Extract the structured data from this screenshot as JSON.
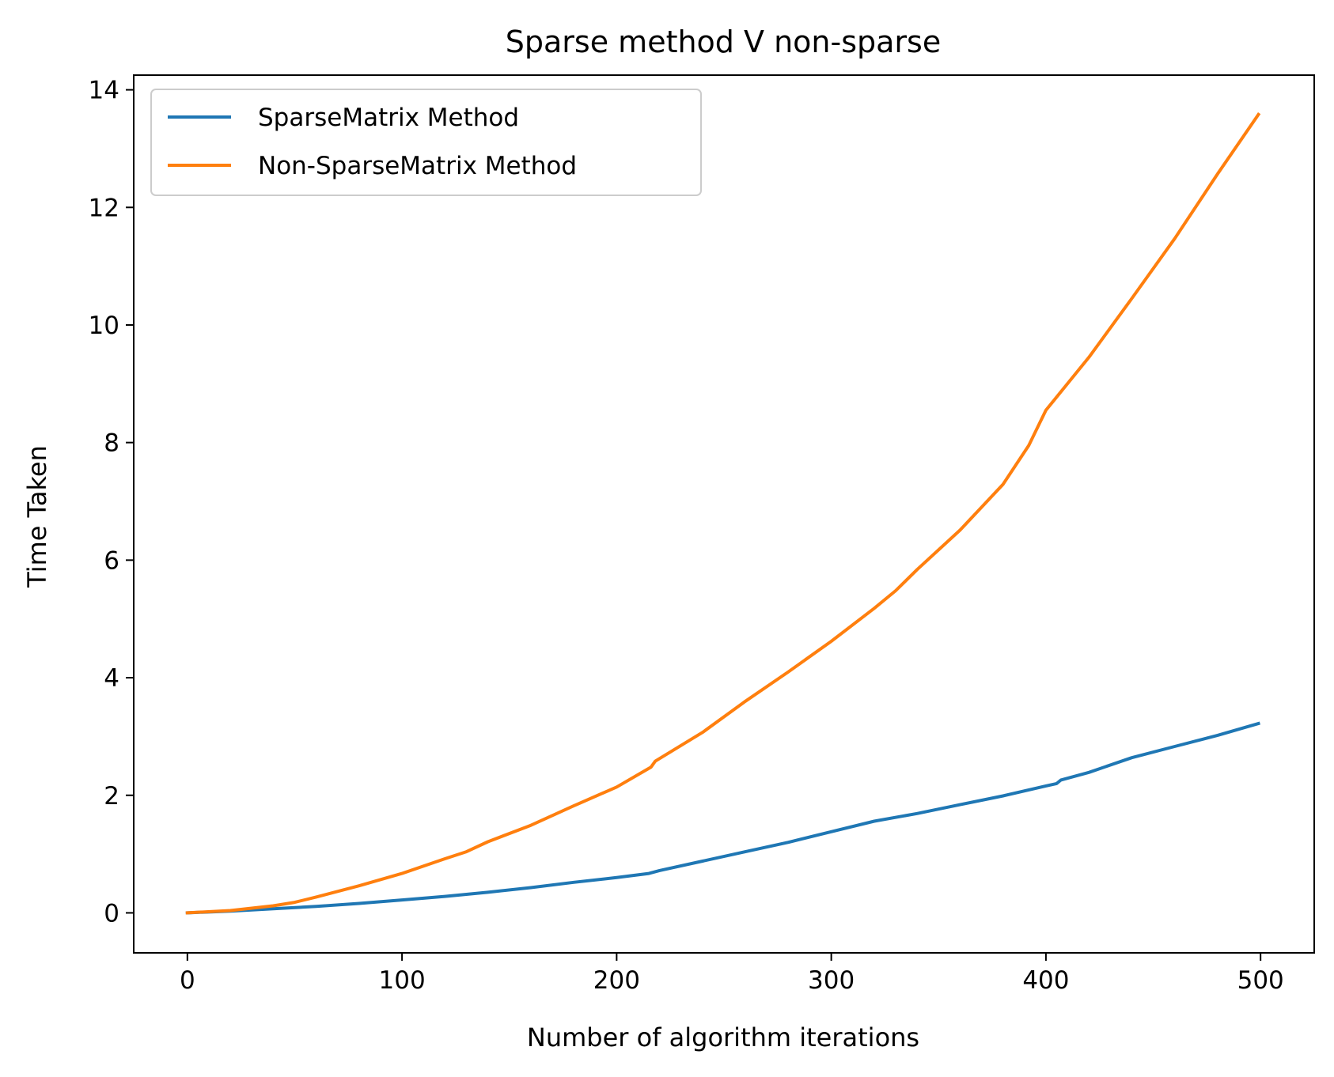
{
  "chart_data": {
    "type": "line",
    "title": "Sparse method V non-sparse",
    "xlabel": "Number of algorithm iterations",
    "ylabel": "Time Taken",
    "xlim": [
      -25,
      525
    ],
    "ylim": [
      -0.68,
      14.25
    ],
    "xticks": [
      0,
      100,
      200,
      300,
      400,
      500
    ],
    "yticks": [
      0,
      2,
      4,
      6,
      8,
      10,
      12,
      14
    ],
    "grid": false,
    "legend_position": "top-left",
    "series": [
      {
        "name": "SparseMatrix Method",
        "color": "#1f77b4",
        "x": [
          0,
          20,
          40,
          60,
          80,
          100,
          120,
          140,
          160,
          180,
          200,
          215,
          220,
          240,
          260,
          280,
          300,
          320,
          340,
          360,
          380,
          400,
          405,
          407,
          420,
          440,
          460,
          480,
          499
        ],
        "y": [
          0,
          0.03,
          0.07,
          0.11,
          0.16,
          0.22,
          0.28,
          0.35,
          0.43,
          0.52,
          0.6,
          0.67,
          0.72,
          0.88,
          1.04,
          1.2,
          1.38,
          1.56,
          1.69,
          1.84,
          1.99,
          2.16,
          2.2,
          2.26,
          2.39,
          2.64,
          2.83,
          3.02,
          3.22
        ]
      },
      {
        "name": "Non-SparseMatrix Method",
        "color": "#ff7f0e",
        "x": [
          0,
          20,
          40,
          50,
          60,
          80,
          100,
          120,
          130,
          140,
          160,
          180,
          200,
          216,
          218,
          240,
          260,
          280,
          300,
          320,
          330,
          340,
          360,
          380,
          392,
          400,
          420,
          440,
          460,
          480,
          499
        ],
        "y": [
          0,
          0.04,
          0.12,
          0.18,
          0.27,
          0.46,
          0.67,
          0.92,
          1.04,
          1.21,
          1.49,
          1.82,
          2.14,
          2.48,
          2.58,
          3.07,
          3.6,
          4.1,
          4.62,
          5.18,
          5.48,
          5.84,
          6.51,
          7.29,
          7.95,
          8.55,
          9.45,
          10.45,
          11.47,
          12.57,
          13.58
        ]
      }
    ]
  }
}
